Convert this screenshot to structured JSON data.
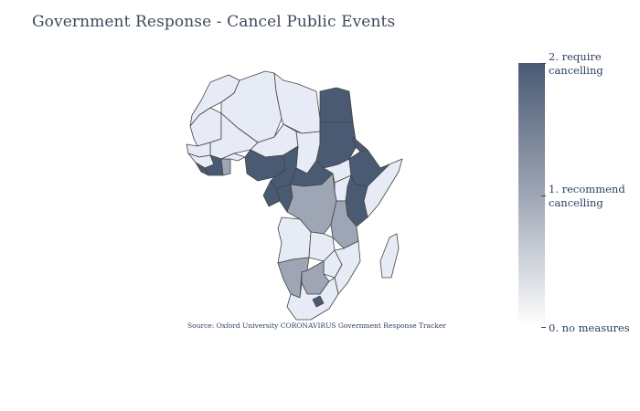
{
  "title": "Government Response - Cancel Public Events",
  "source": "Source:  Oxford University CORONAVIRUS Government Response Tracker",
  "colorscale": {
    "high": "#4a5a73",
    "mid": "#9ea6b5",
    "low": "#ffffff",
    "none": "#e6ebf5"
  },
  "colorbar": {
    "ticks": [
      {
        "value": 2,
        "line1": "2. require",
        "line2": " cancelling"
      },
      {
        "value": 1,
        "line1": "1. recommend",
        "line2": " cancelling"
      },
      {
        "value": 0,
        "line1": "0. no measures",
        "line2": ""
      }
    ]
  },
  "chart_data": {
    "type": "choropleth",
    "title": "Government Response - Cancel Public Events",
    "region": "Africa",
    "value_range": [
      0,
      2
    ],
    "values": {
      "Egypt": 2,
      "Sudan": 2,
      "Ethiopia": 2,
      "Kenya": 2,
      "Eritrea": 2,
      "Cameroon": 2,
      "Nigeria": 2,
      "Gabon": 2,
      "Congo": 2,
      "Central African Republic": 2,
      "Liberia": 2,
      "Cote d'Ivoire": 2,
      "Lesotho": 2,
      "Democratic Republic of the Congo": 1,
      "Tanzania": 1,
      "Ghana": 1,
      "Namibia": 1,
      "Botswana": 1,
      "Morocco": 0,
      "Algeria": 0,
      "Libya": 0,
      "Mali": 0,
      "Niger": 0,
      "Chad": 0,
      "Mauritania": 0,
      "Senegal": 0,
      "Somalia": 0,
      "Angola": 0,
      "Zambia": 0,
      "Mozambique": 0,
      "South Africa": 0,
      "Madagascar": 0,
      "South Sudan": 0,
      "Uganda": 0
    }
  }
}
